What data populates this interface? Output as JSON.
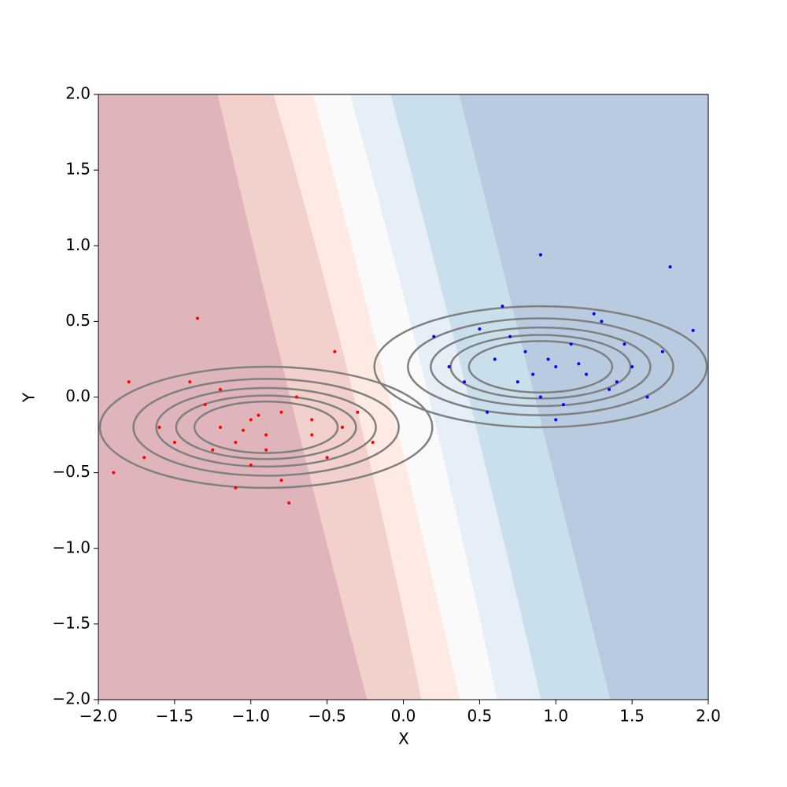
{
  "chart_data": {
    "type": "scatter",
    "xlabel": "X",
    "ylabel": "Y",
    "xlim": [
      -2,
      2
    ],
    "ylim": [
      -2,
      2
    ],
    "xticks": [
      {
        "value": -2,
        "label": "−2.0"
      },
      {
        "value": -1.5,
        "label": "−1.5"
      },
      {
        "value": -1,
        "label": "−1.0"
      },
      {
        "value": -0.5,
        "label": "−0.5"
      },
      {
        "value": 0,
        "label": "0.0"
      },
      {
        "value": 0.5,
        "label": "0.5"
      },
      {
        "value": 1,
        "label": "1.0"
      },
      {
        "value": 1.5,
        "label": "1.5"
      },
      {
        "value": 2,
        "label": "2.0"
      }
    ],
    "yticks": [
      {
        "value": -2,
        "label": "−2.0"
      },
      {
        "value": -1.5,
        "label": "−1.5"
      },
      {
        "value": -1,
        "label": "−1.0"
      },
      {
        "value": -0.5,
        "label": "−0.5"
      },
      {
        "value": 0,
        "label": "0.0"
      },
      {
        "value": 0.5,
        "label": "0.5"
      },
      {
        "value": 1,
        "label": "1.0"
      },
      {
        "value": 1.5,
        "label": "1.5"
      },
      {
        "value": 2,
        "label": "2.0"
      }
    ],
    "region_colors": [
      "#e0b4bb",
      "#f2d0cb",
      "#fdeae3",
      "#fafafa",
      "#e6eff7",
      "#c9e0ec",
      "#b8cbe0"
    ],
    "boundary_y": [
      2,
      0,
      -2
    ],
    "boundaries": [
      [
        -1.215,
        -0.74,
        -0.235
      ],
      [
        -0.849,
        -0.32,
        0.121
      ],
      [
        -0.59,
        -0.09,
        0.374
      ],
      [
        -0.348,
        0.17,
        0.617
      ],
      [
        -0.08,
        0.43,
        0.906
      ],
      [
        0.369,
        0.865,
        1.36
      ]
    ],
    "ellipse_color": "#808080",
    "ellipses": [
      {
        "cx": -0.9,
        "cy": -0.2,
        "rx": [
          1.09,
          0.87,
          0.72,
          0.59,
          0.47
        ],
        "ry": [
          0.4,
          0.32,
          0.26,
          0.21,
          0.17
        ]
      },
      {
        "cx": 0.9,
        "cy": 0.2,
        "rx": [
          1.09,
          0.87,
          0.72,
          0.59,
          0.47
        ],
        "ry": [
          0.4,
          0.32,
          0.26,
          0.21,
          0.17
        ]
      }
    ],
    "series": [
      {
        "color": "#ff0000",
        "x": [
          -1.2,
          -0.8,
          -1.5,
          -0.6,
          -1.0,
          -1.3,
          -0.9,
          -1.7,
          -0.4,
          -1.1,
          -0.7,
          -1.9,
          -0.5,
          -1.4,
          -0.3,
          -1.0,
          -1.6,
          -0.8,
          -1.2,
          -0.2,
          -1.8,
          -0.9,
          -1.1,
          -0.6,
          -1.35,
          -0.75,
          -1.05,
          -0.45,
          -1.25,
          -0.95
        ],
        "values": [
          -0.2,
          -0.1,
          -0.3,
          -0.25,
          -0.15,
          -0.05,
          -0.35,
          -0.4,
          -0.2,
          -0.3,
          0.0,
          -0.5,
          -0.4,
          0.1,
          -0.1,
          -0.45,
          -0.2,
          -0.55,
          0.05,
          -0.3,
          0.1,
          -0.25,
          -0.6,
          -0.15,
          0.52,
          -0.7,
          -0.22,
          0.3,
          -0.35,
          -0.12
        ]
      },
      {
        "color": "#0000ff",
        "x": [
          1.0,
          0.8,
          1.2,
          0.6,
          1.4,
          0.9,
          1.1,
          0.7,
          1.5,
          0.4,
          1.3,
          0.95,
          1.7,
          0.5,
          1.05,
          0.85,
          1.25,
          0.2,
          1.6,
          0.75,
          1.15,
          1.9,
          0.65,
          1.35,
          1.75,
          0.3,
          1.0,
          1.45,
          0.55,
          0.9
        ],
        "values": [
          0.2,
          0.3,
          0.15,
          0.25,
          0.1,
          0.0,
          0.35,
          0.4,
          0.2,
          0.1,
          0.5,
          0.25,
          0.3,
          0.45,
          -0.05,
          0.15,
          0.55,
          0.4,
          0.0,
          0.1,
          0.22,
          0.44,
          0.6,
          0.05,
          0.86,
          0.2,
          -0.15,
          0.35,
          -0.1,
          0.94
        ]
      }
    ]
  }
}
